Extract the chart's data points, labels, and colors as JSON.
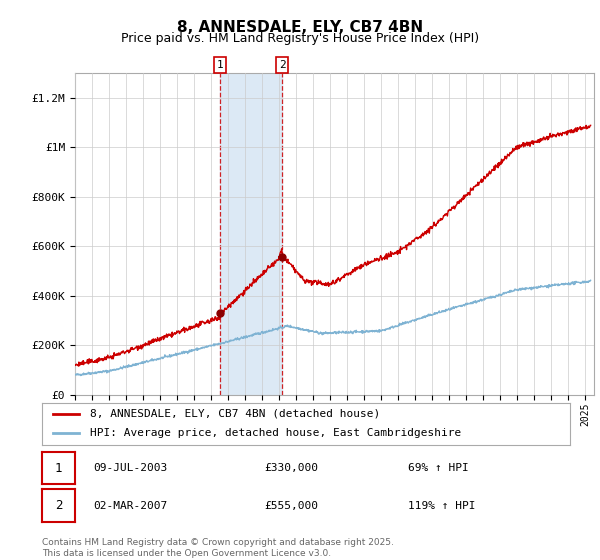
{
  "title1": "8, ANNESDALE, ELY, CB7 4BN",
  "title2": "Price paid vs. HM Land Registry's House Price Index (HPI)",
  "ylabel_ticks": [
    "£0",
    "£200K",
    "£400K",
    "£600K",
    "£800K",
    "£1M",
    "£1.2M"
  ],
  "ytick_vals": [
    0,
    200000,
    400000,
    600000,
    800000,
    1000000,
    1200000
  ],
  "ylim": [
    0,
    1300000
  ],
  "xlim_start": 1995,
  "xlim_end": 2025.5,
  "sale1_x": 2003.52,
  "sale1_y": 330000,
  "sale1_label": "09-JUL-2003",
  "sale1_price": "£330,000",
  "sale1_hpi": "69% ↑ HPI",
  "sale2_x": 2007.17,
  "sale2_y": 555000,
  "sale2_label": "02-MAR-2007",
  "sale2_price": "£555,000",
  "sale2_hpi": "119% ↑ HPI",
  "legend_line1": "8, ANNESDALE, ELY, CB7 4BN (detached house)",
  "legend_line2": "HPI: Average price, detached house, East Cambridgeshire",
  "footnote": "Contains HM Land Registry data © Crown copyright and database right 2025.\nThis data is licensed under the Open Government Licence v3.0.",
  "red_color": "#cc0000",
  "blue_color": "#7fb3d3",
  "shade_color": "#dce9f5",
  "grid_color": "#cccccc"
}
